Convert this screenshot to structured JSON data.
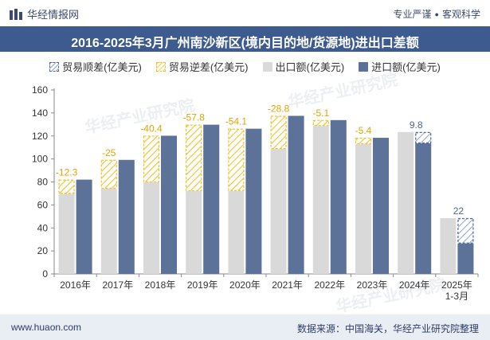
{
  "header": {
    "brand": "华经情报网",
    "tagline_left": "专业严谨",
    "tagline_right": "客观科学"
  },
  "title": "2016-2025年3月广州南沙新区(境内目的地/货源地)进出口差额",
  "legend": {
    "surplus": "贸易顺差(亿美元)",
    "deficit": "贸易逆差(亿美元)",
    "export": "出口额(亿美元)",
    "import": "进口额(亿美元)"
  },
  "footer": {
    "left": "www.huaon.com",
    "right": "数据来源：中国海关，华经产业研究院整理"
  },
  "watermark": "华经产业研究院",
  "colors": {
    "export": "#d9d9d9",
    "import": "#5d7299",
    "deficit": "#f0c228",
    "surplus": "#4a6797",
    "label_deficit": "#e0a400",
    "label_surplus": "#4a6797"
  },
  "chart_data": {
    "type": "bar",
    "categories": [
      "2016年",
      "2017年",
      "2018年",
      "2019年",
      "2020年",
      "2021年",
      "2022年",
      "2023年",
      "2024年",
      "2025年\n1-3月"
    ],
    "series": [
      {
        "name": "出口额(亿美元)",
        "values": [
          69.7,
          74.2,
          79.8,
          72.0,
          72.2,
          108.7,
          128.7,
          113.0,
          123.4,
          48.5
        ]
      },
      {
        "name": "进口额(亿美元)",
        "values": [
          82.0,
          99.2,
          120.2,
          129.8,
          126.3,
          137.5,
          133.8,
          118.4,
          113.6,
          26.5
        ]
      }
    ],
    "balance": {
      "name": "贸易差额(亿美元)",
      "values": [
        -12.3,
        -25,
        -40.4,
        -57.8,
        -54.1,
        -28.8,
        -5.1,
        -5.4,
        9.8,
        22
      ],
      "labels": [
        "-12.3",
        "-25",
        "-40.4",
        "-57.8",
        "-54.1",
        "-28.8",
        "-5.1",
        "-5.4",
        "9.8",
        "22"
      ]
    },
    "yticks": [
      "0",
      "20",
      "40",
      "60",
      "80",
      "100",
      "120",
      "140",
      "160"
    ],
    "ylim": [
      0,
      160
    ],
    "grid": false,
    "legend_position": "top"
  }
}
